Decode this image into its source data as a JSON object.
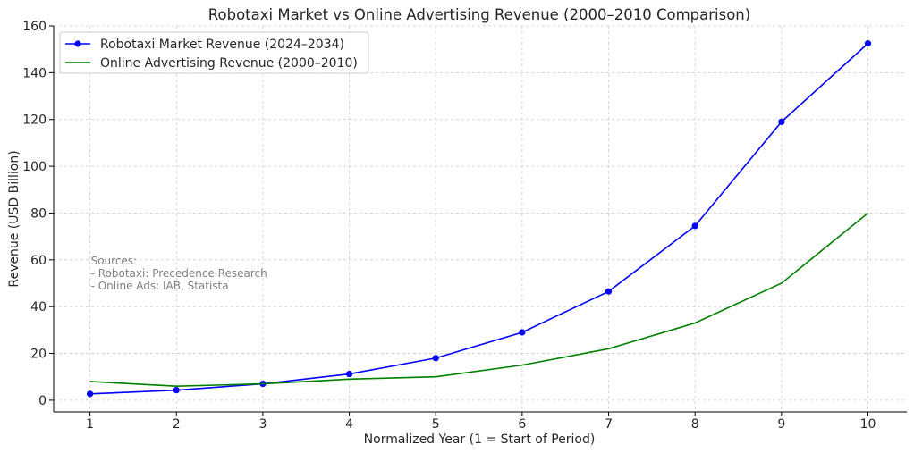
{
  "chart_data": {
    "type": "line",
    "title": "Robotaxi Market vs Online Advertising Revenue (2000–2010 Comparison)",
    "xlabel": "Normalized Year (1 = Start of Period)",
    "ylabel": "Revenue (USD Billion)",
    "xlim": [
      0.58,
      10.45
    ],
    "ylim": [
      -5,
      160
    ],
    "x": [
      1,
      2,
      3,
      4,
      5,
      6,
      7,
      8,
      9,
      10
    ],
    "x_ticks": [
      1,
      2,
      3,
      4,
      5,
      6,
      7,
      8,
      9,
      10
    ],
    "y_ticks": [
      0,
      20,
      40,
      60,
      80,
      100,
      120,
      140,
      160
    ],
    "grid": true,
    "legend_position": "top-left",
    "series": [
      {
        "name": "Robotaxi Market Revenue (2024–2034)",
        "color": "#0000ff",
        "marker": "circle",
        "values": [
          2.7,
          4.3,
          7.0,
          11.2,
          18.0,
          29.0,
          46.5,
          74.5,
          119.0,
          152.5
        ]
      },
      {
        "name": "Online Advertising Revenue (2000–2010)",
        "color": "#008000",
        "marker": "none",
        "values": [
          8.0,
          6.0,
          7.0,
          9.0,
          10.0,
          15.0,
          22.0,
          33.0,
          50.0,
          80.0
        ]
      }
    ],
    "annotation": {
      "lines": [
        "Sources:",
        "- Robotaxi: Precedence Research",
        "- Online Ads: IAB, Statista"
      ],
      "anchor_x": 1.0,
      "anchor_y": 58
    }
  }
}
